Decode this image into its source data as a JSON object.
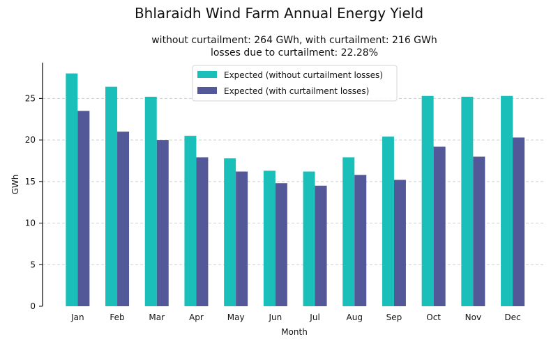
{
  "chart_data": {
    "type": "bar",
    "title": "Bhlaraidh Wind Farm Annual Energy Yield",
    "subtitle_lines": [
      "without curtailment: 264 GWh, with curtailment: 216 GWh",
      "losses due to curtailment: 22.28%"
    ],
    "xlabel": "Month",
    "ylabel": "GWh",
    "ylim": [
      0,
      29.3
    ],
    "yticks": [
      0,
      5,
      10,
      15,
      20,
      25
    ],
    "grid": "y-dashed",
    "legend_position": "top-center",
    "categories": [
      "Jan",
      "Feb",
      "Mar",
      "Apr",
      "May",
      "Jun",
      "Jul",
      "Aug",
      "Sep",
      "Oct",
      "Nov",
      "Dec"
    ],
    "series": [
      {
        "name": "Expected (without curtailment losses)",
        "color": "#1bbfba",
        "values": [
          28.0,
          26.4,
          25.2,
          20.5,
          17.8,
          16.3,
          16.2,
          17.9,
          20.4,
          25.3,
          25.2,
          25.3
        ]
      },
      {
        "name": "Expected (with curtailment losses)",
        "color": "#535899",
        "values": [
          23.5,
          21.0,
          20.0,
          17.9,
          16.2,
          14.8,
          14.5,
          15.8,
          15.2,
          19.2,
          18.0,
          20.3
        ]
      }
    ]
  }
}
